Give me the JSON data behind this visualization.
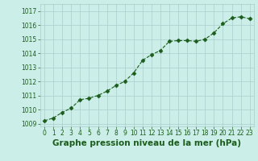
{
  "x": [
    0,
    1,
    2,
    3,
    4,
    5,
    6,
    7,
    8,
    9,
    10,
    11,
    12,
    13,
    14,
    15,
    16,
    17,
    18,
    19,
    20,
    21,
    22,
    23
  ],
  "y": [
    1009.2,
    1009.4,
    1009.8,
    1010.1,
    1010.7,
    1010.8,
    1011.0,
    1011.3,
    1011.7,
    1012.0,
    1012.6,
    1013.5,
    1013.9,
    1014.2,
    1014.85,
    1014.9,
    1014.9,
    1014.85,
    1015.0,
    1015.45,
    1016.1,
    1016.5,
    1016.6,
    1016.45
  ],
  "line_color": "#1a5c1a",
  "marker": "D",
  "marker_size": 2.5,
  "bg_color": "#cceee8",
  "grid_color": "#aacccc",
  "xlabel": "Graphe pression niveau de la mer (hPa)",
  "xlabel_fontsize": 7.5,
  "xlabel_color": "#1a5c1a",
  "tick_color": "#1a5c1a",
  "tick_fontsize": 5.5,
  "ylim": [
    1008.8,
    1017.5
  ],
  "xlim": [
    -0.5,
    23.5
  ],
  "yticks": [
    1009,
    1010,
    1011,
    1012,
    1013,
    1014,
    1015,
    1016,
    1017
  ],
  "xticks": [
    0,
    1,
    2,
    3,
    4,
    5,
    6,
    7,
    8,
    9,
    10,
    11,
    12,
    13,
    14,
    15,
    16,
    17,
    18,
    19,
    20,
    21,
    22,
    23
  ]
}
